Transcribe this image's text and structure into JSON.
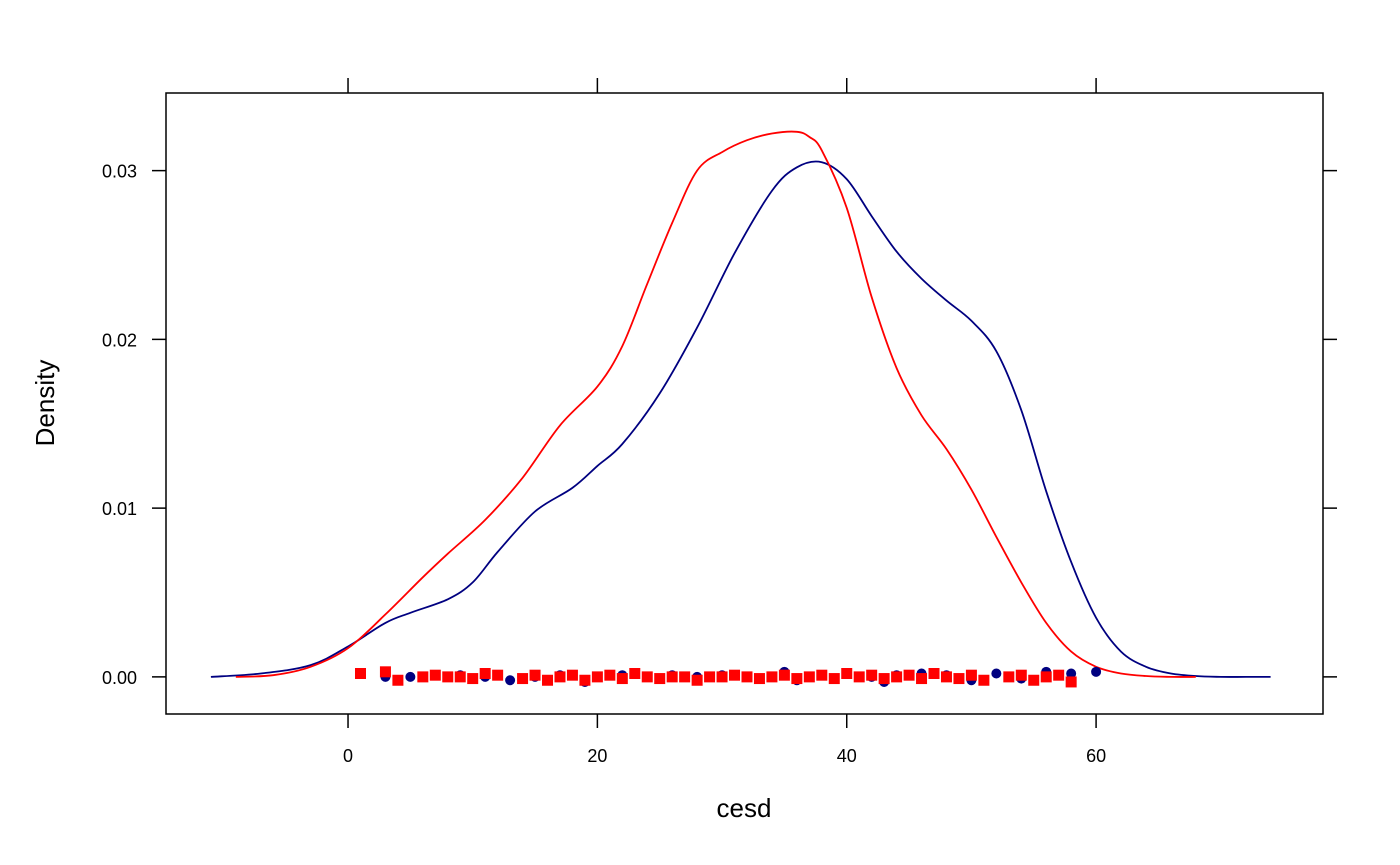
{
  "chart_data": {
    "type": "line",
    "xlabel": "cesd",
    "ylabel": "Density",
    "xlim": [
      -14.6,
      78.2
    ],
    "ylim": [
      -0.0022,
      0.0346
    ],
    "x_ticks": [
      0,
      20,
      40,
      60
    ],
    "x_tick_labels": [
      "0",
      "20",
      "40",
      "60"
    ],
    "y_ticks": [
      0.0,
      0.01,
      0.02,
      0.03
    ],
    "y_tick_labels": [
      "0.00",
      "0.01",
      "0.02",
      "0.03"
    ],
    "grid": false,
    "legend": "none",
    "series": [
      {
        "color": "#000080",
        "marker": "circle",
        "x": [
          -11,
          -7,
          -3,
          0,
          3,
          5,
          8,
          10,
          12,
          15,
          18,
          20,
          22,
          25,
          28,
          31,
          34,
          36,
          38,
          40,
          42,
          44,
          46,
          48,
          50,
          52,
          54,
          56,
          58,
          60,
          62,
          64,
          66,
          68,
          70,
          72,
          74
        ],
        "y": [
          0.0,
          0.0002,
          0.0007,
          0.0018,
          0.0032,
          0.0038,
          0.0046,
          0.0056,
          0.0074,
          0.0098,
          0.0112,
          0.0125,
          0.0138,
          0.0168,
          0.0207,
          0.0251,
          0.0288,
          0.0302,
          0.0305,
          0.0295,
          0.0273,
          0.0252,
          0.0236,
          0.0223,
          0.0211,
          0.0193,
          0.0158,
          0.011,
          0.0068,
          0.0035,
          0.0015,
          0.0006,
          0.0002,
          5e-05,
          0.0,
          0.0,
          0.0
        ]
      },
      {
        "color": "#ff0000",
        "marker": "square",
        "x": [
          -9,
          -6,
          -3,
          0,
          3,
          6,
          8,
          11,
          14,
          17,
          20,
          22,
          24,
          26,
          28,
          30,
          32,
          34,
          36,
          37,
          38,
          40,
          42,
          44,
          46,
          48,
          50,
          52,
          54,
          56,
          58,
          60,
          62,
          64,
          66,
          68
        ],
        "y": [
          0.0,
          0.0001,
          0.0006,
          0.0017,
          0.0037,
          0.0059,
          0.0073,
          0.0093,
          0.0118,
          0.0149,
          0.0172,
          0.0196,
          0.0233,
          0.0269,
          0.03,
          0.0311,
          0.0318,
          0.0322,
          0.0323,
          0.032,
          0.0312,
          0.0278,
          0.0225,
          0.0183,
          0.0155,
          0.0135,
          0.0111,
          0.0083,
          0.0056,
          0.0032,
          0.0015,
          0.0006,
          0.0002,
          5e-05,
          0.0,
          0.0
        ]
      }
    ],
    "rug": [
      {
        "series": 0,
        "x": [
          3,
          5,
          7,
          9,
          11,
          13,
          15,
          17,
          19,
          22,
          24,
          26,
          28,
          30,
          32,
          34,
          35,
          36,
          38,
          40,
          42,
          43,
          44,
          46,
          48,
          50,
          52,
          54,
          56,
          58,
          60
        ],
        "jitter": [
          0.0,
          0.0,
          0.0001,
          0.0001,
          0.0,
          -0.0002,
          0.0,
          0.0001,
          -0.0003,
          0.0001,
          0.0,
          0.0001,
          0.0,
          0.0001,
          0.0,
          0.0,
          0.0003,
          -0.0002,
          0.0001,
          0.0002,
          0.0,
          -0.0003,
          0.0001,
          0.0002,
          0.0001,
          -0.0002,
          0.0002,
          -0.0001,
          0.0003,
          0.0002,
          0.0003
        ]
      },
      {
        "series": 1,
        "x": [
          1,
          3,
          4,
          6,
          7,
          8,
          9,
          10,
          11,
          12,
          14,
          15,
          16,
          17,
          18,
          19,
          20,
          21,
          22,
          23,
          24,
          25,
          26,
          27,
          28,
          29,
          30,
          31,
          32,
          33,
          34,
          35,
          36,
          37,
          38,
          39,
          40,
          41,
          42,
          43,
          44,
          45,
          46,
          47,
          48,
          49,
          50,
          51,
          53,
          54,
          55,
          56,
          57,
          58
        ],
        "jitter": [
          0.0002,
          0.0003,
          -0.0002,
          0.0,
          0.0001,
          0.0,
          0.0,
          -0.0001,
          0.0002,
          0.0001,
          -0.0001,
          0.0001,
          -0.0002,
          0.0,
          0.0001,
          -0.0002,
          0.0,
          0.0001,
          -0.0001,
          0.0002,
          0.0,
          -0.0001,
          0.0,
          0.0,
          -0.0002,
          0.0,
          0.0,
          0.0001,
          0.0,
          -0.0001,
          0.0,
          0.0001,
          -0.0001,
          0.0,
          0.0001,
          -0.0001,
          0.0002,
          0.0,
          0.0001,
          -0.0001,
          0.0,
          0.0001,
          -0.0001,
          0.0002,
          0.0,
          -0.0001,
          0.0001,
          -0.0002,
          0.0,
          0.0001,
          -0.0002,
          0.0,
          0.0001,
          -0.0003
        ]
      }
    ]
  }
}
